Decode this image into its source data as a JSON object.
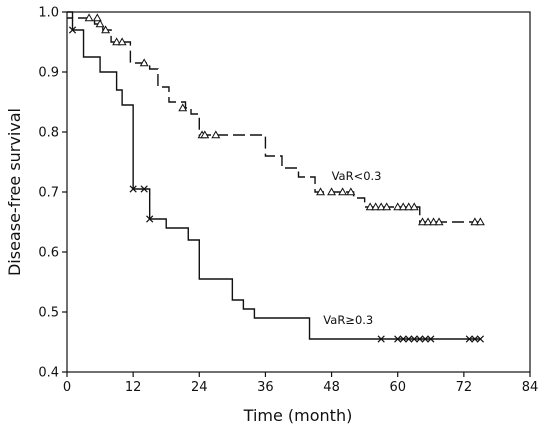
{
  "chart_data": {
    "type": "line",
    "subtype": "kaplan-meier-step",
    "title": "",
    "xlabel": "Time (month)",
    "ylabel": "Disease-free survival",
    "xlim": [
      0,
      84
    ],
    "ylim": [
      0.4,
      1.0
    ],
    "xticks": [
      0,
      12,
      24,
      36,
      48,
      60,
      72,
      84
    ],
    "yticks": [
      0.4,
      0.5,
      0.6,
      0.7,
      0.8,
      0.9,
      1.0
    ],
    "ytick_labels": [
      "0.4",
      "0.5",
      "0.6",
      "0.7",
      "0.8",
      "0.9",
      "1.0"
    ],
    "grid": false,
    "legend": "none",
    "series": [
      {
        "name": "VaR<0.3",
        "line_style": "dashed",
        "censor_marker": "triangle",
        "color": "#111111",
        "steps": [
          [
            0,
            1.0
          ],
          [
            1,
            0.99
          ],
          [
            5,
            0.98
          ],
          [
            6.5,
            0.97
          ],
          [
            8,
            0.95
          ],
          [
            11.5,
            0.915
          ],
          [
            15,
            0.905
          ],
          [
            16.5,
            0.875
          ],
          [
            18.5,
            0.85
          ],
          [
            21.5,
            0.84
          ],
          [
            22.5,
            0.83
          ],
          [
            24,
            0.795
          ],
          [
            36,
            0.76
          ],
          [
            39,
            0.74
          ],
          [
            42,
            0.725
          ],
          [
            45,
            0.7
          ],
          [
            52,
            0.69
          ],
          [
            54,
            0.675
          ],
          [
            64,
            0.65
          ],
          [
            75,
            0.65
          ]
        ],
        "censored": [
          [
            4,
            0.99
          ],
          [
            5.5,
            0.99
          ],
          [
            6,
            0.98
          ],
          [
            7,
            0.97
          ],
          [
            9,
            0.95
          ],
          [
            10,
            0.95
          ],
          [
            14,
            0.915
          ],
          [
            21,
            0.84
          ],
          [
            24.5,
            0.795
          ],
          [
            25,
            0.795
          ],
          [
            27,
            0.795
          ],
          [
            46,
            0.7
          ],
          [
            48,
            0.7
          ],
          [
            50,
            0.7
          ],
          [
            51.5,
            0.7
          ],
          [
            55,
            0.675
          ],
          [
            56,
            0.675
          ],
          [
            57,
            0.675
          ],
          [
            58,
            0.675
          ],
          [
            60,
            0.675
          ],
          [
            61,
            0.675
          ],
          [
            62,
            0.675
          ],
          [
            63,
            0.675
          ],
          [
            64.5,
            0.65
          ],
          [
            65.5,
            0.65
          ],
          [
            66.5,
            0.65
          ],
          [
            67.5,
            0.65
          ],
          [
            74,
            0.65
          ],
          [
            75,
            0.65
          ]
        ]
      },
      {
        "name": "VaR≥0.3",
        "line_style": "solid",
        "censor_marker": "x",
        "color": "#111111",
        "steps": [
          [
            0,
            0.99
          ],
          [
            1,
            0.97
          ],
          [
            3,
            0.925
          ],
          [
            6,
            0.9
          ],
          [
            9,
            0.87
          ],
          [
            10,
            0.845
          ],
          [
            12,
            0.705
          ],
          [
            15,
            0.655
          ],
          [
            18,
            0.64
          ],
          [
            22,
            0.62
          ],
          [
            24,
            0.555
          ],
          [
            30,
            0.52
          ],
          [
            32,
            0.505
          ],
          [
            34,
            0.49
          ],
          [
            44,
            0.455
          ],
          [
            75,
            0.455
          ]
        ],
        "censored": [
          [
            1,
            0.97
          ],
          [
            12,
            0.705
          ],
          [
            14,
            0.705
          ],
          [
            15,
            0.655
          ],
          [
            57,
            0.455
          ],
          [
            60,
            0.455
          ],
          [
            61,
            0.455
          ],
          [
            62,
            0.455
          ],
          [
            63,
            0.455
          ],
          [
            64,
            0.455
          ],
          [
            65,
            0.455
          ],
          [
            66,
            0.455
          ],
          [
            73,
            0.455
          ],
          [
            74,
            0.455
          ],
          [
            75,
            0.455
          ]
        ]
      }
    ],
    "annotations": [
      {
        "text": "VaR<0.3",
        "x": 48,
        "y": 0.72
      },
      {
        "text": "VaR≥0.3",
        "x": 46.5,
        "y": 0.48
      }
    ]
  }
}
